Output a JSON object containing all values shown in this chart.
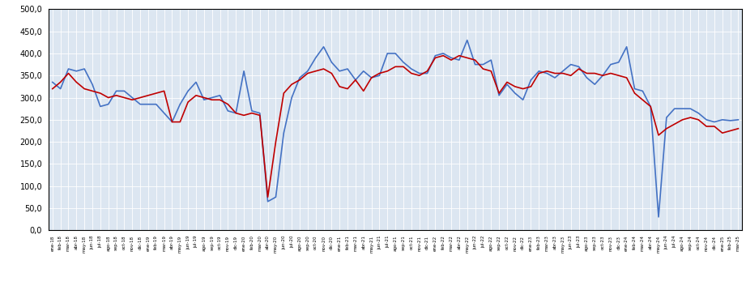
{
  "labels": [
    "ene-18",
    "feb-18",
    "mar-18",
    "abr-18",
    "may-18",
    "jun-18",
    "jul-18",
    "ago-18",
    "sep-18",
    "oct-18",
    "nov-18",
    "dic-18",
    "ene-19",
    "feb-19",
    "mar-19",
    "abr-19",
    "may-19",
    "jun-19",
    "jul-19",
    "ago-19",
    "sep-19",
    "oct-19",
    "nov-19",
    "dic-19",
    "ene-20",
    "feb-20",
    "mar-20",
    "abr-20",
    "may-20",
    "jun-20",
    "jul-20",
    "ago-20",
    "sep-20",
    "oct-20",
    "nov-20",
    "dic-20",
    "ene-21",
    "feb-21",
    "mar-21",
    "abr-21",
    "may-21",
    "jun-21",
    "jul-21",
    "ago-21",
    "sep-21",
    "oct-21",
    "nov-21",
    "dic-21",
    "ene-22",
    "feb-22",
    "mar-22",
    "abr-22",
    "may-22",
    "jun-22",
    "jul-22",
    "ago-22",
    "sep-22",
    "oct-22",
    "nov-22",
    "dic-22",
    "ene-23",
    "feb-23",
    "mar-23",
    "abr-23",
    "may-23",
    "jun-23",
    "jul-23",
    "ago-23",
    "sep-23",
    "oct-23",
    "nov-23",
    "dic-23",
    "ene-24",
    "feb-24",
    "mar-24",
    "abr-24",
    "may-24",
    "jun-24",
    "jul-24",
    "ago-24",
    "sep-24",
    "oct-24",
    "nov-24",
    "dic-24",
    "ene-25",
    "feb-25",
    "mar-25"
  ],
  "serie1": [
    335,
    320,
    365,
    360,
    365,
    330,
    280,
    285,
    315,
    315,
    300,
    285,
    285,
    285,
    265,
    245,
    285,
    315,
    335,
    295,
    300,
    305,
    270,
    265,
    360,
    270,
    265,
    65,
    75,
    220,
    300,
    345,
    360,
    390,
    415,
    380,
    360,
    365,
    340,
    360,
    345,
    350,
    400,
    400,
    380,
    365,
    355,
    355,
    395,
    400,
    390,
    385,
    430,
    375,
    375,
    385,
    305,
    330,
    310,
    295,
    340,
    360,
    355,
    345,
    360,
    375,
    370,
    345,
    330,
    350,
    375,
    380,
    415,
    320,
    315,
    280,
    30,
    255,
    275,
    275,
    275,
    265,
    250,
    245,
    250,
    248,
    250
  ],
  "serie2": [
    320,
    335,
    355,
    335,
    320,
    315,
    310,
    300,
    305,
    300,
    295,
    300,
    305,
    310,
    315,
    245,
    245,
    290,
    305,
    300,
    295,
    295,
    285,
    265,
    260,
    265,
    260,
    75,
    200,
    310,
    330,
    340,
    355,
    360,
    365,
    355,
    325,
    320,
    340,
    315,
    345,
    355,
    360,
    370,
    370,
    355,
    350,
    360,
    390,
    395,
    385,
    395,
    390,
    385,
    365,
    360,
    310,
    335,
    325,
    320,
    325,
    355,
    360,
    355,
    355,
    350,
    365,
    355,
    355,
    350,
    355,
    350,
    345,
    310,
    295,
    280,
    215,
    230,
    240,
    250,
    255,
    250,
    235,
    235,
    220,
    225,
    230
  ],
  "color1": "#4472C4",
  "color2": "#C00000",
  "ylim": [
    0,
    500
  ],
  "yticks": [
    0,
    50,
    100,
    150,
    200,
    250,
    300,
    350,
    400,
    450,
    500
  ],
  "background_color": "#FFFFFF",
  "plot_bg_color": "#DCE6F1",
  "grid_color": "#FFFFFF",
  "linewidth": 1.2,
  "figsize": [
    9.21,
    3.79
  ],
  "dpi": 100
}
